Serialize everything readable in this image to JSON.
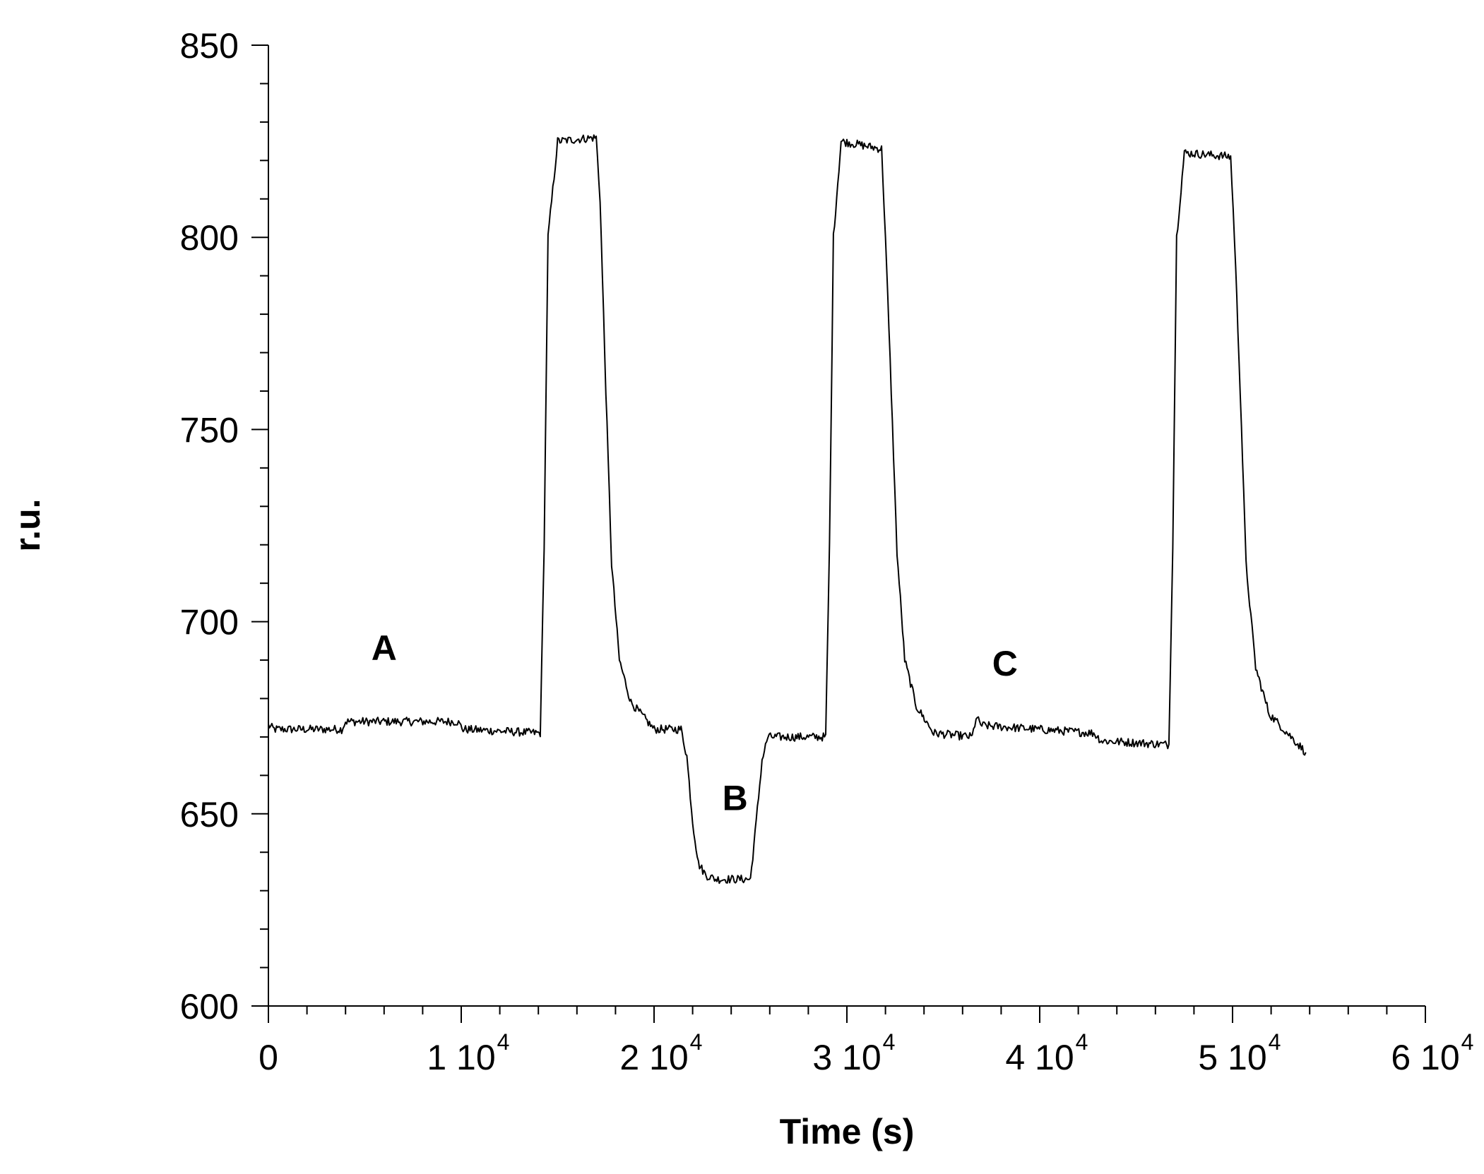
{
  "chart_data": {
    "type": "line",
    "title": "",
    "xlabel": "Time (s)",
    "ylabel": "r.u.",
    "xlim": [
      0,
      60000
    ],
    "ylim": [
      600,
      850
    ],
    "x_ticks": [
      {
        "value": 0,
        "mantissa": "0",
        "exponent": ""
      },
      {
        "value": 10000,
        "mantissa": "1 10",
        "exponent": "4"
      },
      {
        "value": 20000,
        "mantissa": "2 10",
        "exponent": "4"
      },
      {
        "value": 30000,
        "mantissa": "3 10",
        "exponent": "4"
      },
      {
        "value": 40000,
        "mantissa": "4 10",
        "exponent": "4"
      },
      {
        "value": 50000,
        "mantissa": "5 10",
        "exponent": "4"
      },
      {
        "value": 60000,
        "mantissa": "6 10",
        "exponent": "4"
      }
    ],
    "y_ticks": [
      {
        "value": 600,
        "label": "600"
      },
      {
        "value": 650,
        "label": "650"
      },
      {
        "value": 700,
        "label": "700"
      },
      {
        "value": 750,
        "label": "750"
      },
      {
        "value": 800,
        "label": "800"
      },
      {
        "value": 850,
        "label": "850"
      }
    ],
    "x_minor_step": 2000,
    "y_minor_step": 10,
    "grid": false,
    "legend": "none",
    "series": [
      {
        "x": [
          0,
          300,
          3800,
          4000,
          9800,
          10100,
          14100,
          14300,
          14500,
          15000,
          17000,
          17200,
          17500,
          17800,
          18200,
          18800,
          20000,
          21400,
          21700,
          22000,
          22300,
          22700,
          23200,
          25000,
          25300,
          25600,
          25900,
          26100,
          28900,
          29100,
          29300,
          29700,
          31800,
          32000,
          32300,
          32600,
          33000,
          33600,
          34500,
          36500,
          36700,
          37000,
          42800,
          43200,
          46700,
          46900,
          47100,
          47500,
          49900,
          50100,
          50400,
          50700,
          51200,
          51900,
          53800
        ],
        "y": [
          673,
          672,
          672,
          674,
          674,
          672,
          671,
          720,
          800,
          825,
          826,
          810,
          760,
          715,
          690,
          679,
          672,
          672,
          665,
          648,
          637,
          634,
          633,
          633,
          648,
          664,
          670,
          670,
          670,
          720,
          800,
          825,
          823,
          800,
          760,
          718,
          690,
          678,
          671,
          670,
          675,
          673,
          671,
          669,
          668,
          720,
          800,
          822,
          821,
          800,
          760,
          715,
          688,
          676,
          666
        ]
      }
    ],
    "annotations": [
      {
        "text": "A",
        "x": 6000,
        "y": 690
      },
      {
        "text": "B",
        "x": 24200,
        "y": 651
      },
      {
        "text": "C",
        "x": 38200,
        "y": 686
      }
    ]
  },
  "colors": {
    "trace": "#000000",
    "axis": "#000000",
    "background": "#ffffff"
  }
}
